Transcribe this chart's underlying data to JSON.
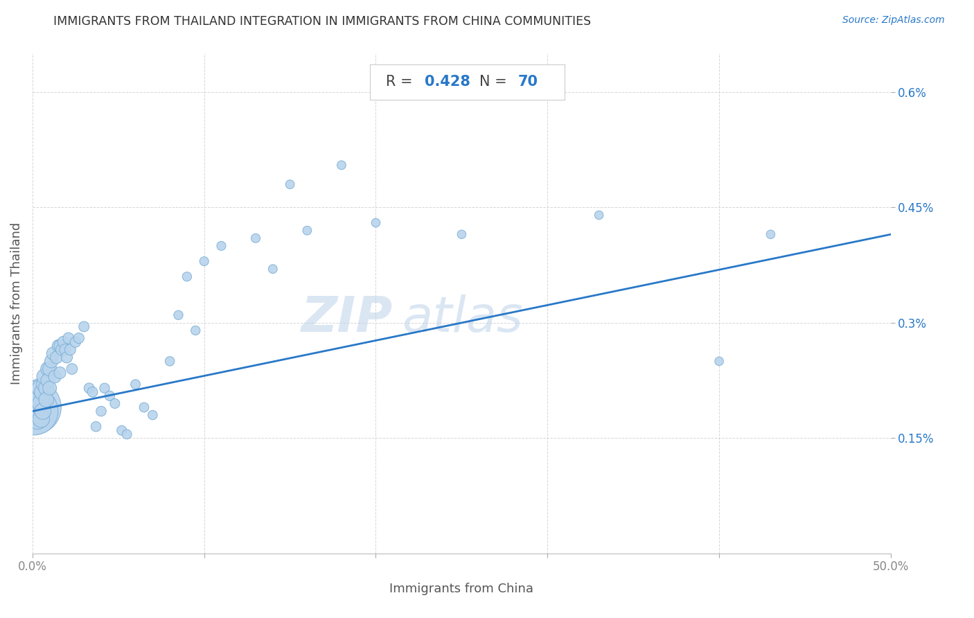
{
  "title": "IMMIGRANTS FROM THAILAND INTEGRATION IN IMMIGRANTS FROM CHINA COMMUNITIES",
  "source": "Source: ZipAtlas.com",
  "xlabel": "Immigrants from China",
  "ylabel": "Immigrants from Thailand",
  "watermark_line1": "ZIP",
  "watermark_line2": "atlas",
  "R_val": "0.428",
  "N_val": "70",
  "xlim": [
    0.0,
    0.5
  ],
  "ylim": [
    0.0,
    0.0065
  ],
  "xtick_positions": [
    0.0,
    0.1,
    0.2,
    0.3,
    0.4,
    0.5
  ],
  "xtick_labels": [
    "0.0%",
    "",
    "",
    "",
    "",
    "50.0%"
  ],
  "ytick_positions": [
    0.0015,
    0.003,
    0.0045,
    0.006
  ],
  "ytick_labels": [
    "0.15%",
    "0.3%",
    "0.45%",
    "0.6%"
  ],
  "dot_color": "#b8d4ed",
  "dot_edge_color": "#7aadd4",
  "line_color": "#2878c8",
  "title_color": "#333333",
  "source_color": "#2878c8",
  "ylabel_color": "#555555",
  "xlabel_color": "#555555",
  "ytick_color": "#2878c8",
  "xtick_color": "#888888",
  "background_color": "#ffffff",
  "grid_color": "#cccccc",
  "scatter_x": [
    0.001,
    0.001,
    0.002,
    0.002,
    0.002,
    0.003,
    0.003,
    0.003,
    0.003,
    0.004,
    0.004,
    0.004,
    0.005,
    0.005,
    0.005,
    0.006,
    0.006,
    0.007,
    0.007,
    0.008,
    0.008,
    0.009,
    0.009,
    0.01,
    0.01,
    0.011,
    0.012,
    0.013,
    0.014,
    0.015,
    0.016,
    0.016,
    0.017,
    0.018,
    0.019,
    0.02,
    0.021,
    0.022,
    0.023,
    0.025,
    0.027,
    0.03,
    0.033,
    0.035,
    0.037,
    0.04,
    0.042,
    0.045,
    0.048,
    0.052,
    0.055,
    0.06,
    0.065,
    0.07,
    0.08,
    0.085,
    0.09,
    0.095,
    0.1,
    0.11,
    0.13,
    0.14,
    0.15,
    0.16,
    0.18,
    0.2,
    0.25,
    0.33,
    0.4,
    0.43
  ],
  "scatter_y": [
    0.0019,
    0.00185,
    0.002,
    0.00195,
    0.00185,
    0.00195,
    0.0019,
    0.0018,
    0.00175,
    0.00195,
    0.00215,
    0.002,
    0.00215,
    0.00195,
    0.00175,
    0.0021,
    0.00185,
    0.0022,
    0.0023,
    0.00215,
    0.002,
    0.0024,
    0.00225,
    0.0024,
    0.00215,
    0.0025,
    0.0026,
    0.0023,
    0.00255,
    0.0027,
    0.0027,
    0.00235,
    0.00265,
    0.00275,
    0.00265,
    0.00255,
    0.0028,
    0.00265,
    0.0024,
    0.00275,
    0.0028,
    0.00295,
    0.00215,
    0.0021,
    0.00165,
    0.00185,
    0.00215,
    0.00205,
    0.00195,
    0.0016,
    0.00155,
    0.0022,
    0.0019,
    0.0018,
    0.0025,
    0.0031,
    0.0036,
    0.0029,
    0.0038,
    0.004,
    0.0041,
    0.0037,
    0.0048,
    0.0042,
    0.00505,
    0.0043,
    0.00415,
    0.0044,
    0.0025,
    0.00415
  ],
  "scatter_sizes": [
    900,
    700,
    300,
    250,
    200,
    180,
    160,
    140,
    130,
    120,
    110,
    105,
    100,
    95,
    90,
    85,
    82,
    78,
    75,
    72,
    68,
    65,
    62,
    60,
    58,
    55,
    52,
    50,
    48,
    46,
    44,
    43,
    42,
    41,
    40,
    39,
    38,
    37,
    36,
    35,
    34,
    33,
    32,
    32,
    31,
    31,
    30,
    30,
    29,
    29,
    28,
    28,
    28,
    27,
    27,
    26,
    26,
    26,
    25,
    25,
    25,
    24,
    24,
    24,
    24,
    23,
    23,
    23,
    23,
    23
  ],
  "line_x_start": 0.0,
  "line_x_end": 0.5,
  "line_y_start": 0.00185,
  "line_y_end": 0.00415
}
